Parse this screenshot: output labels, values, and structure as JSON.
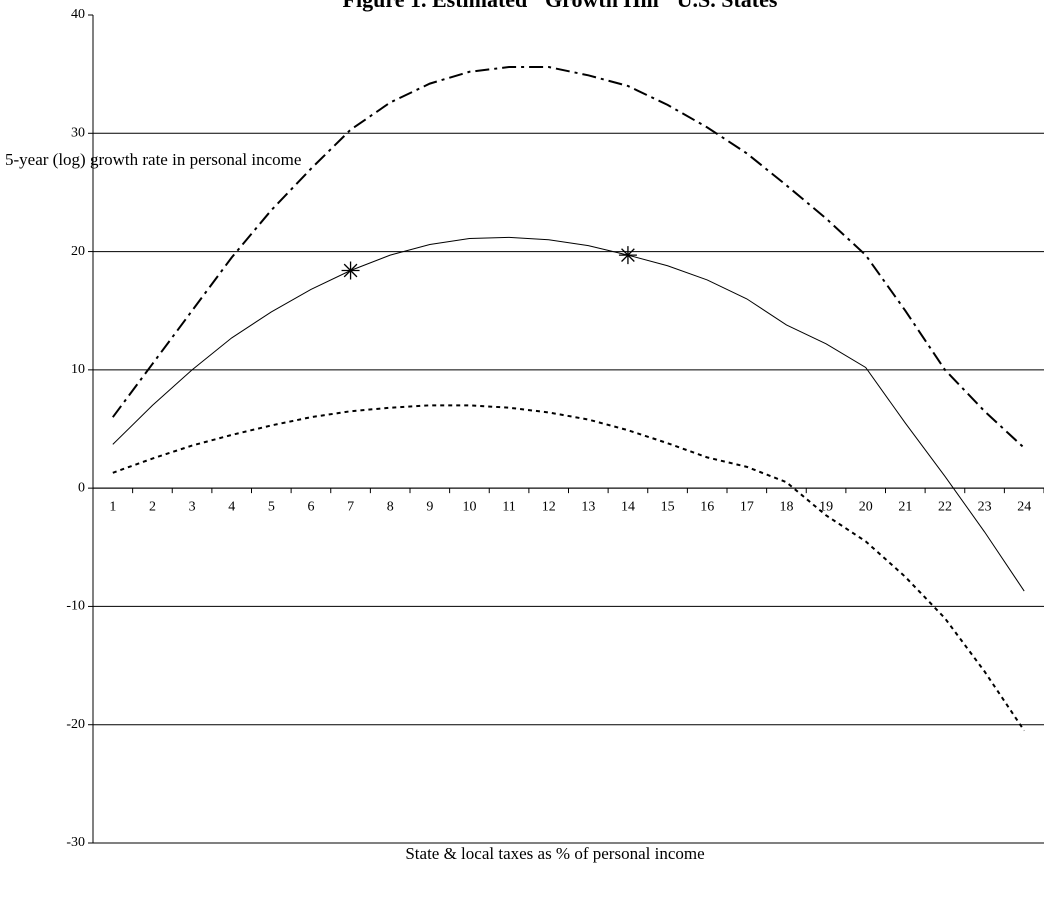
{
  "chart_data": {
    "type": "line",
    "title": "Figure 1.  Estimated \"Growth Hill\"  U.S. States",
    "x_label": "State & local taxes as % of personal income",
    "y_label": "5-year (log) growth rate in personal income",
    "categories": [
      1,
      2,
      3,
      4,
      5,
      6,
      7,
      8,
      9,
      10,
      11,
      12,
      13,
      14,
      15,
      16,
      17,
      18,
      19,
      20,
      21,
      22,
      23,
      24
    ],
    "series": [
      {
        "color": "#000000",
        "style": "dash-dot",
        "values": [
          6,
          10.5,
          15,
          19.5,
          23.5,
          27,
          30.3,
          32.6,
          34.2,
          35.2,
          35.6,
          35.6,
          34.9,
          34,
          32.4,
          30.5,
          28.3,
          25.6,
          22.8,
          19.7,
          15,
          10,
          6.5,
          3.4
        ]
      },
      {
        "color": "#000000",
        "style": "solid",
        "values": [
          3.7,
          7,
          10,
          12.7,
          14.9,
          16.8,
          18.4,
          19.7,
          20.6,
          21.1,
          21.2,
          21,
          20.5,
          19.7,
          18.8,
          17.6,
          16,
          13.8,
          12.2,
          10.2,
          5.5,
          1,
          -3.7,
          -8.7
        ]
      },
      {
        "color": "#000000",
        "style": "dotted",
        "values": [
          1.3,
          2.5,
          3.6,
          4.5,
          5.3,
          6,
          6.5,
          6.8,
          7,
          7,
          6.8,
          6.4,
          5.8,
          4.9,
          3.8,
          2.6,
          1.8,
          0.5,
          -2.3,
          -4.5,
          -7.5,
          -11,
          -15.5,
          -20.5
        ]
      },
      {
        "color": "#000000",
        "style": "none",
        "marker": "asterisk",
        "values": [
          null,
          null,
          null,
          null,
          null,
          null,
          18.4,
          null,
          null,
          null,
          null,
          null,
          null,
          19.7,
          null,
          null,
          null,
          null,
          null,
          null,
          null,
          null,
          null,
          null
        ]
      }
    ],
    "ylim": [
      -30,
      40
    ],
    "yticks": [
      -30,
      -20,
      -10,
      0,
      10,
      20,
      30,
      40
    ],
    "grid": true
  }
}
